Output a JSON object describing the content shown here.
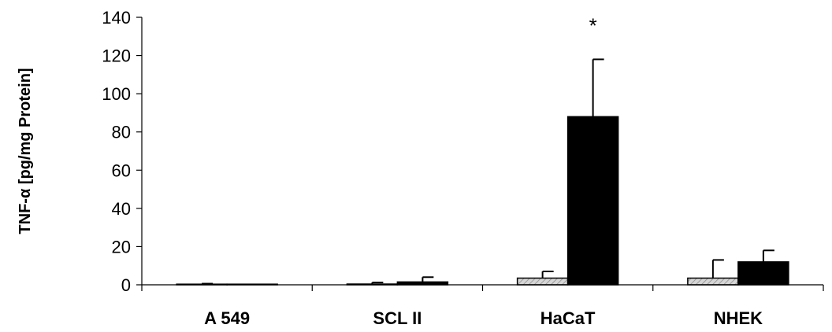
{
  "chart_data": {
    "type": "bar",
    "title": "",
    "xlabel": "",
    "ylabel": "TNF-α [pg/mg Protein]",
    "ylim": [
      0,
      140
    ],
    "yticks": [
      0,
      20,
      40,
      60,
      80,
      100,
      120,
      140
    ],
    "ytick_labels": [
      "0",
      "20",
      "40",
      "60",
      "80",
      "100",
      "120",
      "140"
    ],
    "categories": [
      "A 549",
      "SCL II",
      "HaCaT",
      "NHEK"
    ],
    "series": [
      {
        "fill": "hatched-light-gray",
        "color": "#c8c8c8",
        "values": [
          0.3,
          0.4,
          3.5,
          3.5
        ],
        "errors": [
          0.3,
          0.8,
          3.5,
          9.5
        ]
      },
      {
        "fill": "solid-black",
        "color": "#000000",
        "values": [
          0.1,
          1.5,
          88,
          12
        ],
        "errors": [
          0.1,
          2.5,
          30,
          6
        ]
      }
    ],
    "annotations": [
      {
        "category": "HaCaT",
        "series_index": 1,
        "text": "*"
      }
    ],
    "grid": false,
    "legend": "none"
  }
}
